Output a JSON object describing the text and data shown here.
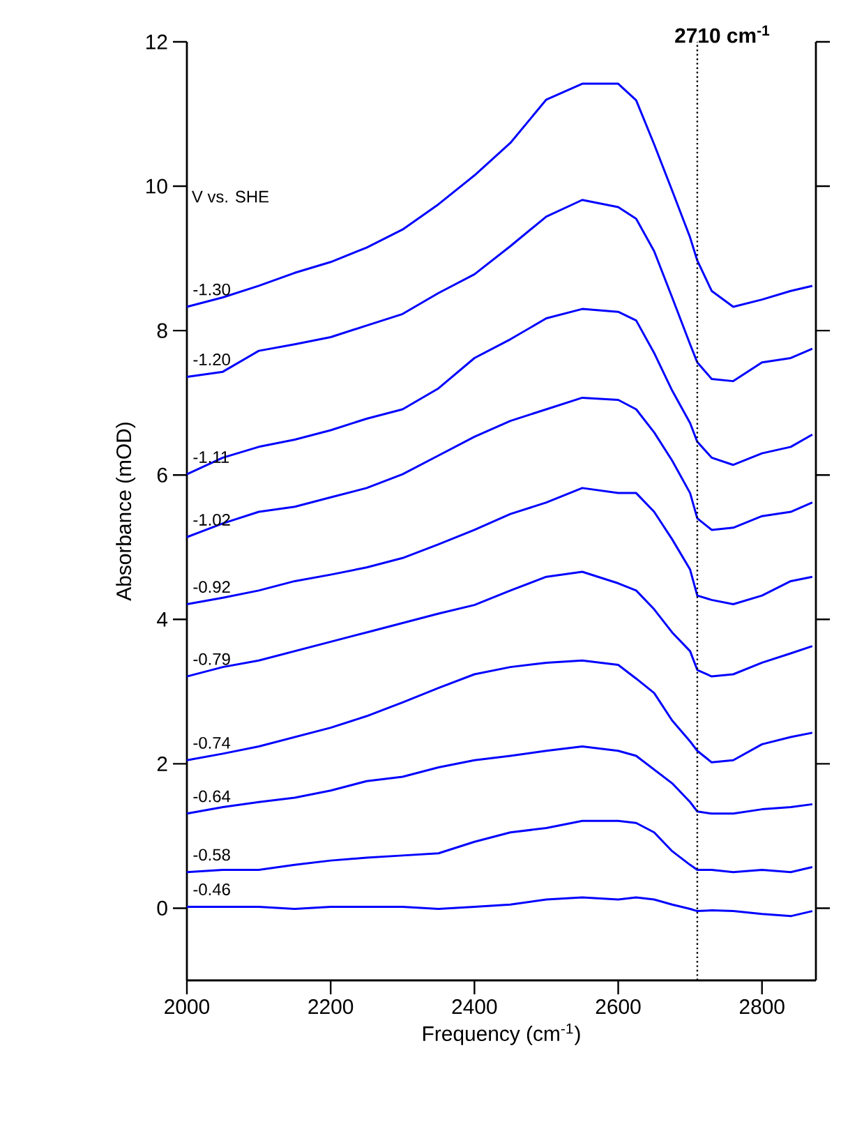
{
  "chart_data": {
    "type": "line",
    "xlabel": "Frequency (cm$^{-1}$)",
    "ylabel": "Absorbance (mOD)",
    "xlim": [
      2000,
      2875
    ],
    "ylim": [
      -1,
      12
    ],
    "xticks": [
      2000,
      2200,
      2400,
      2600,
      2800
    ],
    "yticks": [
      0,
      2,
      4,
      6,
      8,
      10,
      12
    ],
    "x": [
      2000,
      2050,
      2100,
      2150,
      2200,
      2250,
      2300,
      2350,
      2400,
      2450,
      2500,
      2550,
      2600,
      2625,
      2650,
      2675,
      2700,
      2710,
      2730,
      2760,
      2800,
      2840,
      2870
    ],
    "annotations": [
      "V vs. SHE"
    ],
    "ref_lines": [
      {
        "axis": "x",
        "value": 2710,
        "label": "2710 cm$^{-1}$",
        "line_style": "dotted",
        "color": "#000000"
      }
    ],
    "series": [
      {
        "name": "-1.30",
        "color": "#0000ff",
        "values": [
          8.33,
          8.46,
          8.62,
          8.8,
          8.95,
          9.15,
          9.4,
          9.75,
          10.15,
          10.6,
          11.2,
          11.42,
          11.42,
          11.19,
          10.58,
          9.94,
          9.29,
          8.97,
          8.55,
          8.33,
          8.43,
          8.55,
          8.62
        ]
      },
      {
        "name": "-1.20",
        "color": "#0000ff",
        "values": [
          7.36,
          7.43,
          7.72,
          7.81,
          7.91,
          8.07,
          8.23,
          8.52,
          8.78,
          9.17,
          9.58,
          9.81,
          9.71,
          9.55,
          9.1,
          8.46,
          7.81,
          7.56,
          7.33,
          7.3,
          7.56,
          7.62,
          7.75
        ]
      },
      {
        "name": "-1.11",
        "color": "#0000ff",
        "values": [
          6.01,
          6.24,
          6.39,
          6.49,
          6.62,
          6.78,
          6.91,
          7.2,
          7.62,
          7.88,
          8.17,
          8.3,
          8.26,
          8.14,
          7.69,
          7.17,
          6.72,
          6.46,
          6.24,
          6.14,
          6.3,
          6.39,
          6.56
        ]
      },
      {
        "name": "-1.02",
        "color": "#0000ff",
        "values": [
          5.14,
          5.33,
          5.49,
          5.56,
          5.69,
          5.82,
          6.01,
          6.27,
          6.53,
          6.75,
          6.91,
          7.07,
          7.04,
          6.91,
          6.59,
          6.2,
          5.75,
          5.4,
          5.24,
          5.27,
          5.43,
          5.49,
          5.62
        ]
      },
      {
        "name": "-0.92",
        "color": "#0000ff",
        "values": [
          4.21,
          4.3,
          4.4,
          4.53,
          4.62,
          4.72,
          4.85,
          5.04,
          5.24,
          5.46,
          5.62,
          5.82,
          5.75,
          5.75,
          5.49,
          5.11,
          4.69,
          4.33,
          4.27,
          4.21,
          4.33,
          4.53,
          4.59
        ]
      },
      {
        "name": "-0.79",
        "color": "#0000ff",
        "values": [
          3.21,
          3.34,
          3.43,
          3.56,
          3.69,
          3.82,
          3.95,
          4.08,
          4.2,
          4.4,
          4.59,
          4.66,
          4.5,
          4.4,
          4.14,
          3.82,
          3.56,
          3.3,
          3.21,
          3.24,
          3.4,
          3.53,
          3.63
        ]
      },
      {
        "name": "-0.74",
        "color": "#0000ff",
        "values": [
          2.05,
          2.14,
          2.24,
          2.37,
          2.5,
          2.66,
          2.85,
          3.05,
          3.24,
          3.34,
          3.4,
          3.43,
          3.37,
          3.18,
          2.98,
          2.6,
          2.31,
          2.18,
          2.02,
          2.05,
          2.27,
          2.37,
          2.43
        ]
      },
      {
        "name": "-0.64",
        "color": "#0000ff",
        "values": [
          1.31,
          1.4,
          1.47,
          1.53,
          1.63,
          1.76,
          1.82,
          1.95,
          2.05,
          2.11,
          2.18,
          2.24,
          2.18,
          2.11,
          1.92,
          1.73,
          1.47,
          1.34,
          1.31,
          1.31,
          1.37,
          1.4,
          1.44
        ]
      },
      {
        "name": "-0.58",
        "color": "#0000ff",
        "values": [
          0.5,
          0.53,
          0.53,
          0.6,
          0.66,
          0.7,
          0.73,
          0.76,
          0.92,
          1.05,
          1.11,
          1.21,
          1.21,
          1.18,
          1.05,
          0.79,
          0.6,
          0.53,
          0.53,
          0.5,
          0.53,
          0.5,
          0.57
        ]
      },
      {
        "name": "-0.46",
        "color": "#0000ff",
        "values": [
          0.02,
          0.02,
          0.02,
          -0.01,
          0.02,
          0.02,
          0.02,
          -0.01,
          0.02,
          0.05,
          0.12,
          0.15,
          0.12,
          0.15,
          0.12,
          0.05,
          -0.01,
          -0.04,
          -0.03,
          -0.04,
          -0.08,
          -0.11,
          -0.04
        ]
      }
    ]
  }
}
